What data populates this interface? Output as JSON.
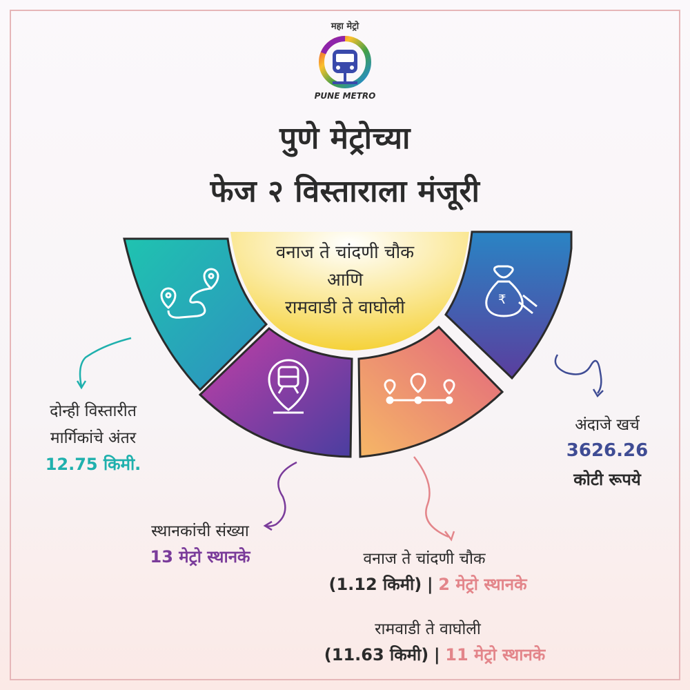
{
  "logo": {
    "top_text": "महा मेट्रो",
    "bottom_text": "PUNE METRO"
  },
  "title": {
    "line1": "पुणे मेट्रोच्या",
    "line2": "फेज २ विस्ताराला मंजूरी"
  },
  "center": {
    "line1": "वनाज ते चांदणी चौक",
    "line2": "आणि",
    "line3": "रामवाडी ते वाघोली"
  },
  "distance": {
    "line1": "दोन्ही विस्तारीत",
    "line2": "मार्गिकांचे अंतर",
    "value": "12.75 किमी."
  },
  "stations": {
    "label": "स्थानकांची संख्या",
    "value": "13 मेट्रो स्थानके"
  },
  "cost": {
    "label": "अंदाजे खर्च",
    "value": "3626.26",
    "unit": "कोटी रूपये"
  },
  "route1": {
    "name": "वनाज ते चांदणी चौक",
    "distance": "(1.12 किमी)",
    "sep": "|",
    "stations": "2 मेट्रो स्थानके"
  },
  "route2": {
    "name": "रामवाडी ते वाघोली",
    "distance": "(11.63 किमी)",
    "sep": "|",
    "stations": "11 मेट्रो स्थानके"
  },
  "icons": [
    "route-icon",
    "metro-station-pin-icon",
    "stations-line-icon",
    "money-bag-icon"
  ],
  "colors": {
    "teal": "#1fb0ad",
    "purple": "#7a3b9a",
    "navy": "#3f4c94",
    "pink": "#e3858a",
    "yellow": "#f5d23a"
  }
}
